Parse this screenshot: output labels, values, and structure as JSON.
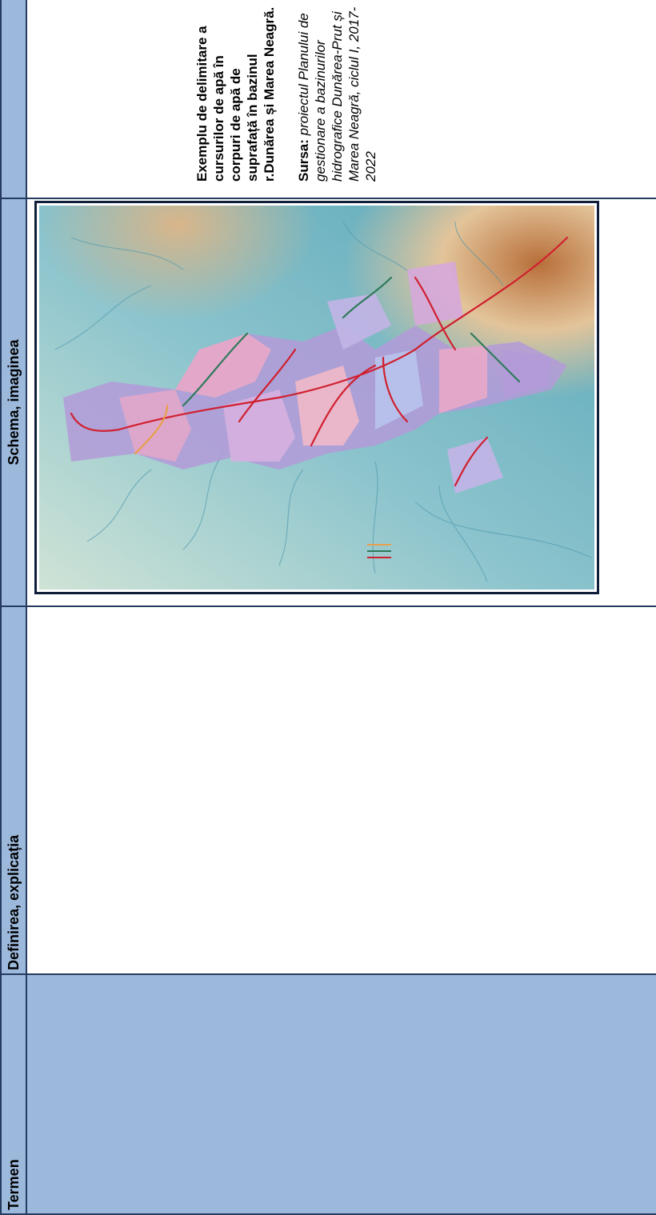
{
  "table": {
    "headers": {
      "term": "Termen",
      "definition": "Definirea, explicația",
      "schema": "Schema, imaginea"
    }
  },
  "caption": {
    "title": "Exemplu de delimitare a cursurilor de apă în corpuri de apă de suprafață în bazinul r.Dunărea și Marea Neagră.",
    "source_label": "Sursa:",
    "source_text": "proiectul Planului de gestionare a bazinurilor hidrografice Dunărea-Prut și Marea Neagră, ciclul I, 2017-2022"
  },
  "map": {
    "colors": {
      "water_line_red": "#d0202f",
      "water_line_green": "#2e7a5a",
      "water_line_orange": "#e8a04a",
      "relief_low": "#6fb8c6",
      "relief_high": "#c98a4f",
      "basin_fill_a": "#b39ad8",
      "basin_fill_b": "#e9a8c8"
    }
  }
}
